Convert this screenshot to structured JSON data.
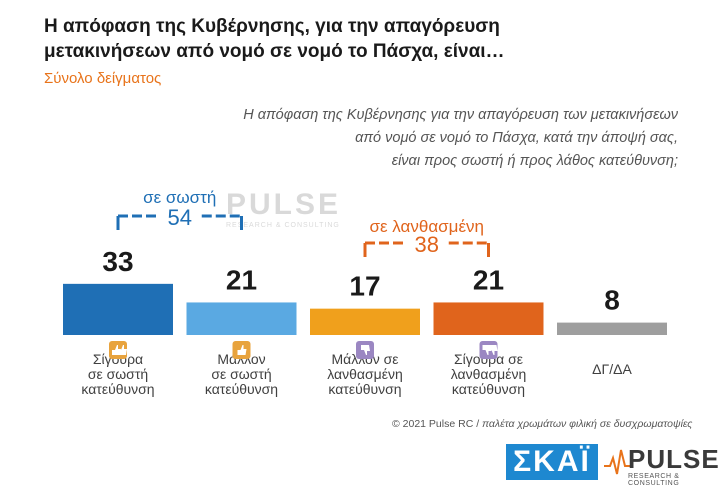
{
  "header": {
    "title_line1": "Η απόφαση της Κυβέρνησης, για την απαγόρευση",
    "title_line2": "μετακινήσεων από νομό σε νομό το Πάσχα, είναι…",
    "subtitle": "Σύνολο δείγματος"
  },
  "question": {
    "line1": "Η απόφαση της Κυβέρνησης για την απαγόρευση των μετακινήσεων",
    "line2": "από νομό σε νομό το Πάσχα, κατά την άποψή σας,",
    "line3": "είναι προς σωστή ή προς λάθος κατεύθυνση;"
  },
  "colors": {
    "bar1": "#1f6fb5",
    "bar2": "#5aa9e2",
    "bar3": "#f0a01c",
    "bar4": "#e0641c",
    "bar5": "#9e9e9e",
    "bracket_correct": "#1f6fb5",
    "bracket_wrong": "#e0641c",
    "icon_thumbs": "#e8a33d",
    "icon_down": "#9b87c2"
  },
  "chart_data": {
    "type": "bar",
    "categories": [
      [
        "Σίγουρα",
        "σε σωστή",
        "κατεύθυνση"
      ],
      [
        "Μάλλον",
        "σε σωστή",
        "κατεύθυνση"
      ],
      [
        "Μάλλον σε",
        "λανθασμένη",
        "κατεύθυνση"
      ],
      [
        "Σίγουρα σε",
        "λανθασμένη",
        "κατεύθυνση"
      ],
      [
        "ΔΓ/ΔΑ"
      ]
    ],
    "values": [
      33,
      21,
      17,
      21,
      8
    ],
    "icons": [
      "double-thumbs-up-icon",
      "thumbs-up-icon",
      "thumbs-down-icon",
      "double-thumbs-down-icon",
      ""
    ],
    "groups": [
      {
        "name": "σε σωστή",
        "total": "54",
        "members": [
          0,
          1
        ]
      },
      {
        "name": "σε λανθασμένη",
        "total": "38",
        "members": [
          2,
          3
        ]
      }
    ],
    "ylim": [
      0,
      40
    ]
  },
  "watermark": {
    "text": "PULSE",
    "sub": "RESEARCH & CONSULTING"
  },
  "footer": {
    "copyright": "© 2021 Pulse RC",
    "sep": "/",
    "note": "παλέτα χρωμάτων φιλική σε δυσχρωματοψίες"
  },
  "logos": {
    "skai": "ΣΚΑΪ",
    "pulse": "PULSE",
    "pulse_sub": "RESEARCH & CONSULTING"
  }
}
